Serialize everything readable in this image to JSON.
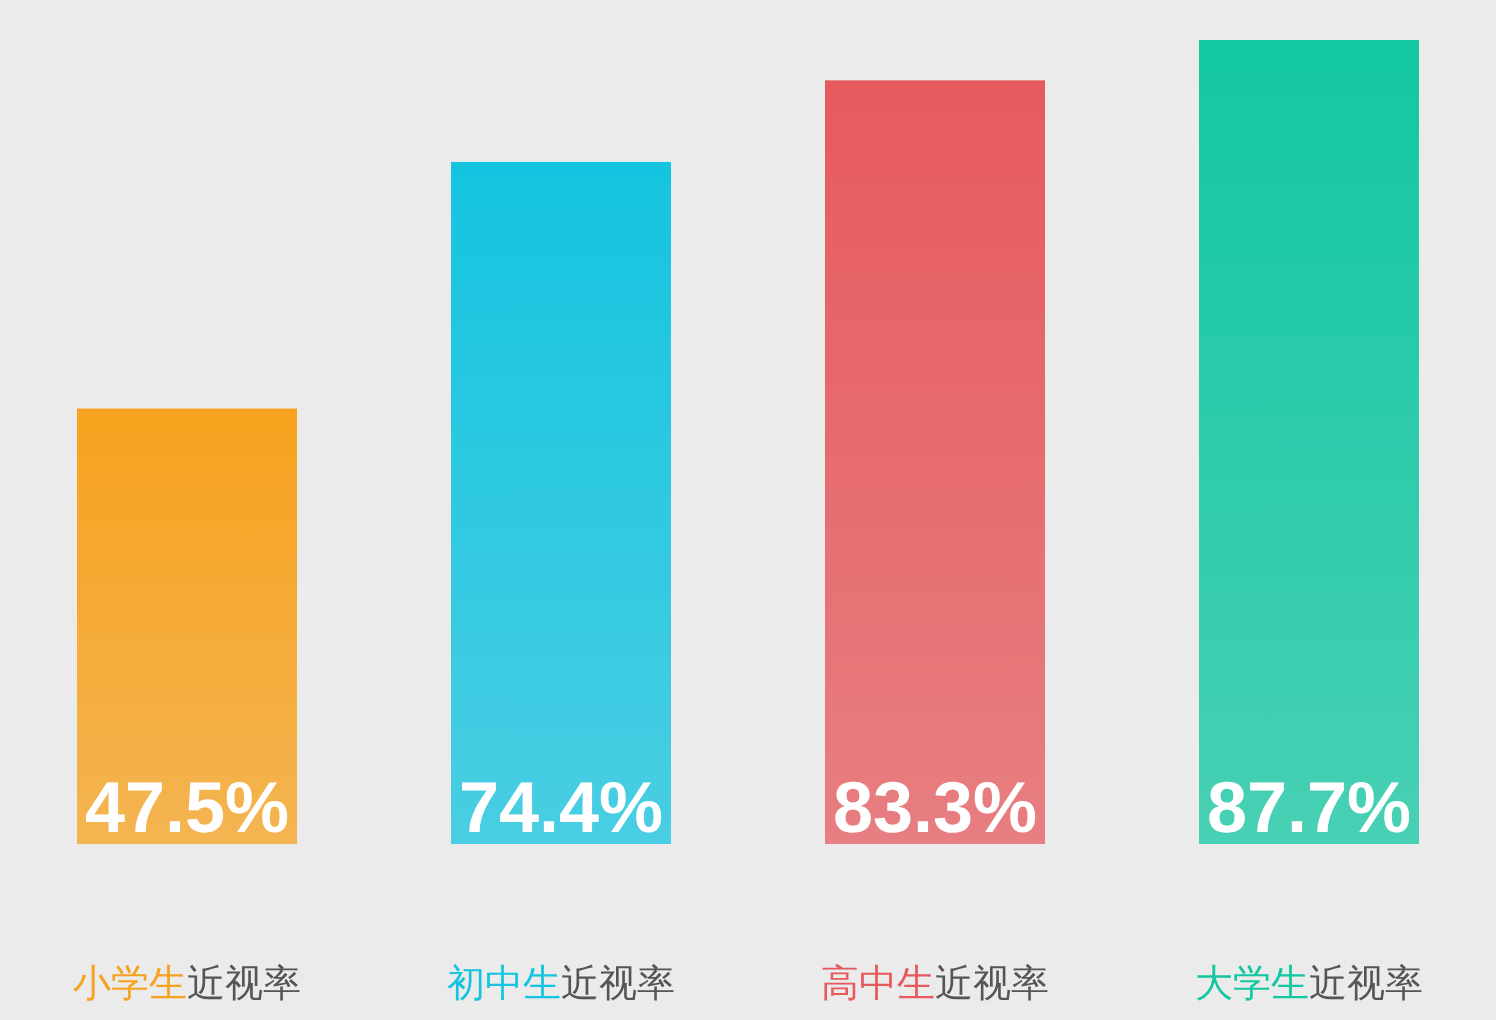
{
  "chart_data": {
    "type": "bar",
    "categories": [
      "小学生近视率",
      "初中生近视率",
      "高中生近视率",
      "大学生近视率"
    ],
    "values": [
      47.5,
      74.4,
      83.3,
      87.7
    ],
    "colors": [
      "#f7a21e",
      "#14c4e0",
      "#e65a5e",
      "#12c7a2"
    ],
    "value_labels": [
      "47.5%",
      "74.4%",
      "83.3%",
      "87.7%"
    ]
  }
}
